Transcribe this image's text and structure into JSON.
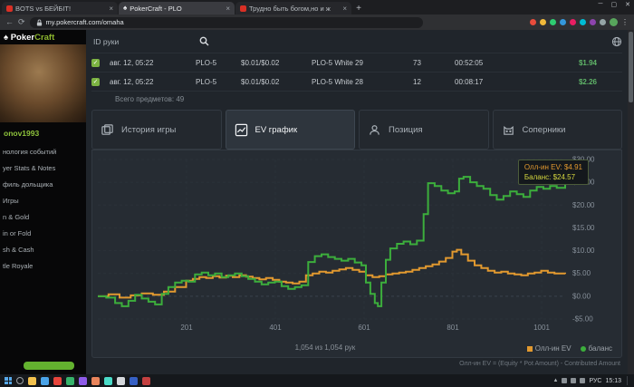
{
  "browser": {
    "tabs": [
      {
        "title": "BOTS vs БЕЙБІТ!"
      },
      {
        "title": "PokerCraft - PLO"
      },
      {
        "title": "Трудно быть богом,но и ж"
      }
    ],
    "new_tab_label": "+",
    "url": "my.pokercraft.com/omaha",
    "window_controls": {
      "minimize": "─",
      "maximize": "▢",
      "close": "✕"
    }
  },
  "sidebar": {
    "logo_poker": "Poker",
    "logo_craft": "Craft",
    "logo_spade": "♠",
    "username": "onov1993",
    "items": [
      "нология событий",
      "yer Stats & Notes",
      "филь дольщика",
      "Игры",
      "n & Gold",
      "in or Fold",
      "sh & Cash",
      "tle Royale"
    ]
  },
  "toolbar": {
    "search_label": "ID руки"
  },
  "hands_table": {
    "rows": [
      {
        "checked": "✓",
        "date": "авг. 12, 05:22",
        "game": "PLO-5",
        "stakes": "$0.01/$0.02",
        "table": "PLO-5 White 29",
        "hands": "73",
        "duration": "00:52:05",
        "result": "$1.94"
      },
      {
        "checked": "✓",
        "date": "авг. 12, 05:22",
        "game": "PLO-5",
        "stakes": "$0.01/$0.02",
        "table": "PLO-5 White 28",
        "hands": "12",
        "duration": "00:08:17",
        "result": "$2.26"
      }
    ],
    "total": "Всего предметов: 49"
  },
  "section_tabs": [
    {
      "label": "История игры"
    },
    {
      "label": "EV график"
    },
    {
      "label": "Позиция"
    },
    {
      "label": "Соперники"
    }
  ],
  "chart": {
    "tooltip": {
      "ev_line": "Олл-ин EV: $4.91",
      "balance_line": "Баланс: $24.57"
    },
    "hands_counter": "1,054 из 1,054 рук",
    "legend": [
      {
        "label": "Олл-ин EV",
        "color": "#e2992f"
      },
      {
        "label": "баланс",
        "color": "#3cae3c"
      }
    ],
    "footnote": "Олл-ин EV = (Equity * Pot Amount) - Contributed Amount"
  },
  "chart_data": {
    "type": "line",
    "title": "EV график",
    "xlim": [
      1,
      1054
    ],
    "ylim": [
      -5,
      30
    ],
    "x_ticks": [
      {
        "value": 201,
        "label": "201"
      },
      {
        "value": 401,
        "label": "401"
      },
      {
        "value": 601,
        "label": "601"
      },
      {
        "value": 801,
        "label": "801"
      },
      {
        "value": 1001,
        "label": "1001"
      }
    ],
    "y_ticks": [
      {
        "value": 30,
        "label": "$30.00"
      },
      {
        "value": 25,
        "label": "$25.00"
      },
      {
        "value": 20,
        "label": "$20.00"
      },
      {
        "value": 15,
        "label": "$15.00"
      },
      {
        "value": 10,
        "label": "$10.00"
      },
      {
        "value": 5,
        "label": "$5.00"
      },
      {
        "value": 0,
        "label": "$0.00"
      },
      {
        "value": -5,
        "label": "-$5.00"
      }
    ],
    "series": [
      {
        "name": "Олл-ин EV",
        "color": "#e2992f",
        "final_value": 4.91,
        "points": [
          [
            1,
            0
          ],
          [
            25,
            0.4
          ],
          [
            50,
            -0.3
          ],
          [
            75,
            0.2
          ],
          [
            100,
            0.6
          ],
          [
            125,
            0.3
          ],
          [
            150,
            1
          ],
          [
            175,
            2
          ],
          [
            200,
            3.4
          ],
          [
            215,
            3.8
          ],
          [
            230,
            4.2
          ],
          [
            245,
            4
          ],
          [
            260,
            4.4
          ],
          [
            275,
            4.1
          ],
          [
            290,
            4.5
          ],
          [
            305,
            4.2
          ],
          [
            320,
            4.6
          ],
          [
            335,
            4.3
          ],
          [
            350,
            4
          ],
          [
            365,
            3.7
          ],
          [
            380,
            4
          ],
          [
            395,
            3.6
          ],
          [
            410,
            3.2
          ],
          [
            425,
            3
          ],
          [
            440,
            2.8
          ],
          [
            455,
            3.2
          ],
          [
            470,
            4.6
          ],
          [
            485,
            5
          ],
          [
            500,
            5.4
          ],
          [
            515,
            5.2
          ],
          [
            530,
            5.6
          ],
          [
            545,
            5.9
          ],
          [
            560,
            6.2
          ],
          [
            575,
            5.8
          ],
          [
            590,
            5.4
          ],
          [
            605,
            4.6
          ],
          [
            620,
            4.2
          ],
          [
            635,
            4.4
          ],
          [
            650,
            4.8
          ],
          [
            665,
            5
          ],
          [
            680,
            5.2
          ],
          [
            695,
            5.4
          ],
          [
            710,
            5.8
          ],
          [
            725,
            6.2
          ],
          [
            740,
            6.6
          ],
          [
            755,
            7
          ],
          [
            770,
            7.6
          ],
          [
            785,
            8.4
          ],
          [
            800,
            9.8
          ],
          [
            810,
            10.2
          ],
          [
            820,
            9.2
          ],
          [
            835,
            7.8
          ],
          [
            850,
            6.8
          ],
          [
            865,
            6.2
          ],
          [
            880,
            5.6
          ],
          [
            895,
            5.2
          ],
          [
            910,
            5.4
          ],
          [
            925,
            5
          ],
          [
            940,
            4.8
          ],
          [
            955,
            4.6
          ],
          [
            970,
            5
          ],
          [
            985,
            5.2
          ],
          [
            1000,
            5.6
          ],
          [
            1015,
            5.2
          ],
          [
            1030,
            5
          ],
          [
            1054,
            4.91
          ]
        ]
      },
      {
        "name": "баланс",
        "color": "#3cae3c",
        "final_value": 24.57,
        "points": [
          [
            1,
            0
          ],
          [
            20,
            -0.3
          ],
          [
            40,
            -1.5
          ],
          [
            55,
            -2.2
          ],
          [
            70,
            -1
          ],
          [
            85,
            0.3
          ],
          [
            100,
            -0.5
          ],
          [
            115,
            -1.2
          ],
          [
            130,
            -1.8
          ],
          [
            145,
            0.5
          ],
          [
            160,
            2
          ],
          [
            175,
            3
          ],
          [
            190,
            3.4
          ],
          [
            205,
            3.2
          ],
          [
            220,
            4.8
          ],
          [
            235,
            5.2
          ],
          [
            250,
            4.6
          ],
          [
            265,
            5
          ],
          [
            280,
            4.2
          ],
          [
            295,
            4.6
          ],
          [
            310,
            5
          ],
          [
            325,
            4.4
          ],
          [
            340,
            3.8
          ],
          [
            355,
            3.2
          ],
          [
            370,
            2.6
          ],
          [
            385,
            3
          ],
          [
            400,
            3.2
          ],
          [
            415,
            2.2
          ],
          [
            430,
            1.6
          ],
          [
            445,
            2
          ],
          [
            460,
            2.4
          ],
          [
            475,
            7.5
          ],
          [
            490,
            8.8
          ],
          [
            505,
            9.2
          ],
          [
            520,
            8.6
          ],
          [
            535,
            8.2
          ],
          [
            550,
            7.8
          ],
          [
            565,
            8.2
          ],
          [
            580,
            7.4
          ],
          [
            595,
            6.8
          ],
          [
            605,
            3
          ],
          [
            615,
            0.5
          ],
          [
            625,
            -1.5
          ],
          [
            632,
            -2.2
          ],
          [
            640,
            3
          ],
          [
            650,
            8
          ],
          [
            660,
            10.5
          ],
          [
            675,
            11.5
          ],
          [
            690,
            12
          ],
          [
            705,
            11.4
          ],
          [
            720,
            12.2
          ],
          [
            735,
            18
          ],
          [
            745,
            24.8
          ],
          [
            760,
            24.2
          ],
          [
            775,
            23.2
          ],
          [
            790,
            22.6
          ],
          [
            805,
            23
          ],
          [
            815,
            25.8
          ],
          [
            825,
            26.2
          ],
          [
            840,
            25
          ],
          [
            855,
            24.2
          ],
          [
            870,
            23.6
          ],
          [
            885,
            22.2
          ],
          [
            900,
            21.2
          ],
          [
            915,
            22
          ],
          [
            930,
            23
          ],
          [
            945,
            22.4
          ],
          [
            960,
            21.8
          ],
          [
            975,
            23.2
          ],
          [
            990,
            24
          ],
          [
            1005,
            23.6
          ],
          [
            1020,
            24.2
          ],
          [
            1035,
            23.8
          ],
          [
            1054,
            24.57
          ]
        ]
      }
    ]
  },
  "taskbar": {
    "lang": "РУС",
    "time": "15:13"
  }
}
